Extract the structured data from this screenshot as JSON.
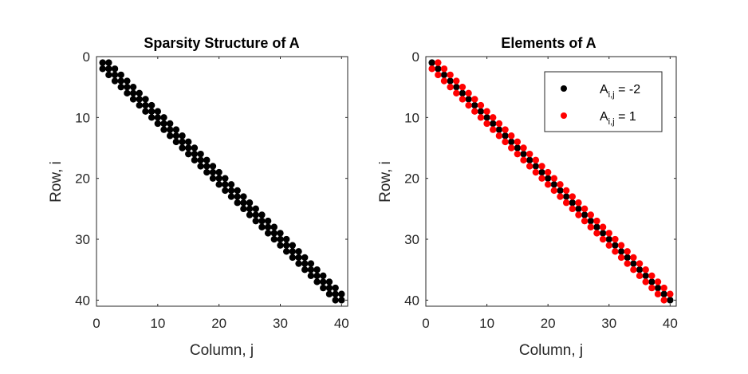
{
  "chart_data": [
    {
      "type": "scatter",
      "title": "Sparsity Structure of A",
      "xlabel": "Column, j",
      "ylabel": "Row, i",
      "xlim": [
        0,
        41
      ],
      "ylim": [
        41,
        0
      ],
      "y_reversed": true,
      "xticks": [
        0,
        10,
        20,
        30,
        40
      ],
      "yticks": [
        0,
        10,
        20,
        30,
        40
      ],
      "grid": false,
      "matrix_size": 40,
      "pattern": "tridiagonal nonzeros (|i - j| <= 1)",
      "series": [
        {
          "marker_color": "#000000",
          "nonzero_offsets": [
            -1,
            0,
            1
          ]
        }
      ]
    },
    {
      "type": "scatter",
      "title": "Elements of A",
      "xlabel": "Column, j",
      "ylabel": "Row, i",
      "xlim": [
        0,
        41
      ],
      "ylim": [
        41,
        0
      ],
      "y_reversed": true,
      "xticks": [
        0,
        10,
        20,
        30,
        40
      ],
      "yticks": [
        0,
        10,
        20,
        30,
        40
      ],
      "grid": false,
      "matrix_size": 40,
      "legend_placement": "top-right",
      "series": [
        {
          "name_main": "A",
          "name_sub": "i,j",
          "name_rest": " = -2",
          "value": -2,
          "marker_color": "#000000",
          "offsets": [
            0
          ]
        },
        {
          "name_main": "A",
          "name_sub": "i,j",
          "name_rest": " = 1",
          "value": 1,
          "marker_color": "#ff0000",
          "offsets": [
            -1,
            1
          ]
        }
      ]
    }
  ]
}
